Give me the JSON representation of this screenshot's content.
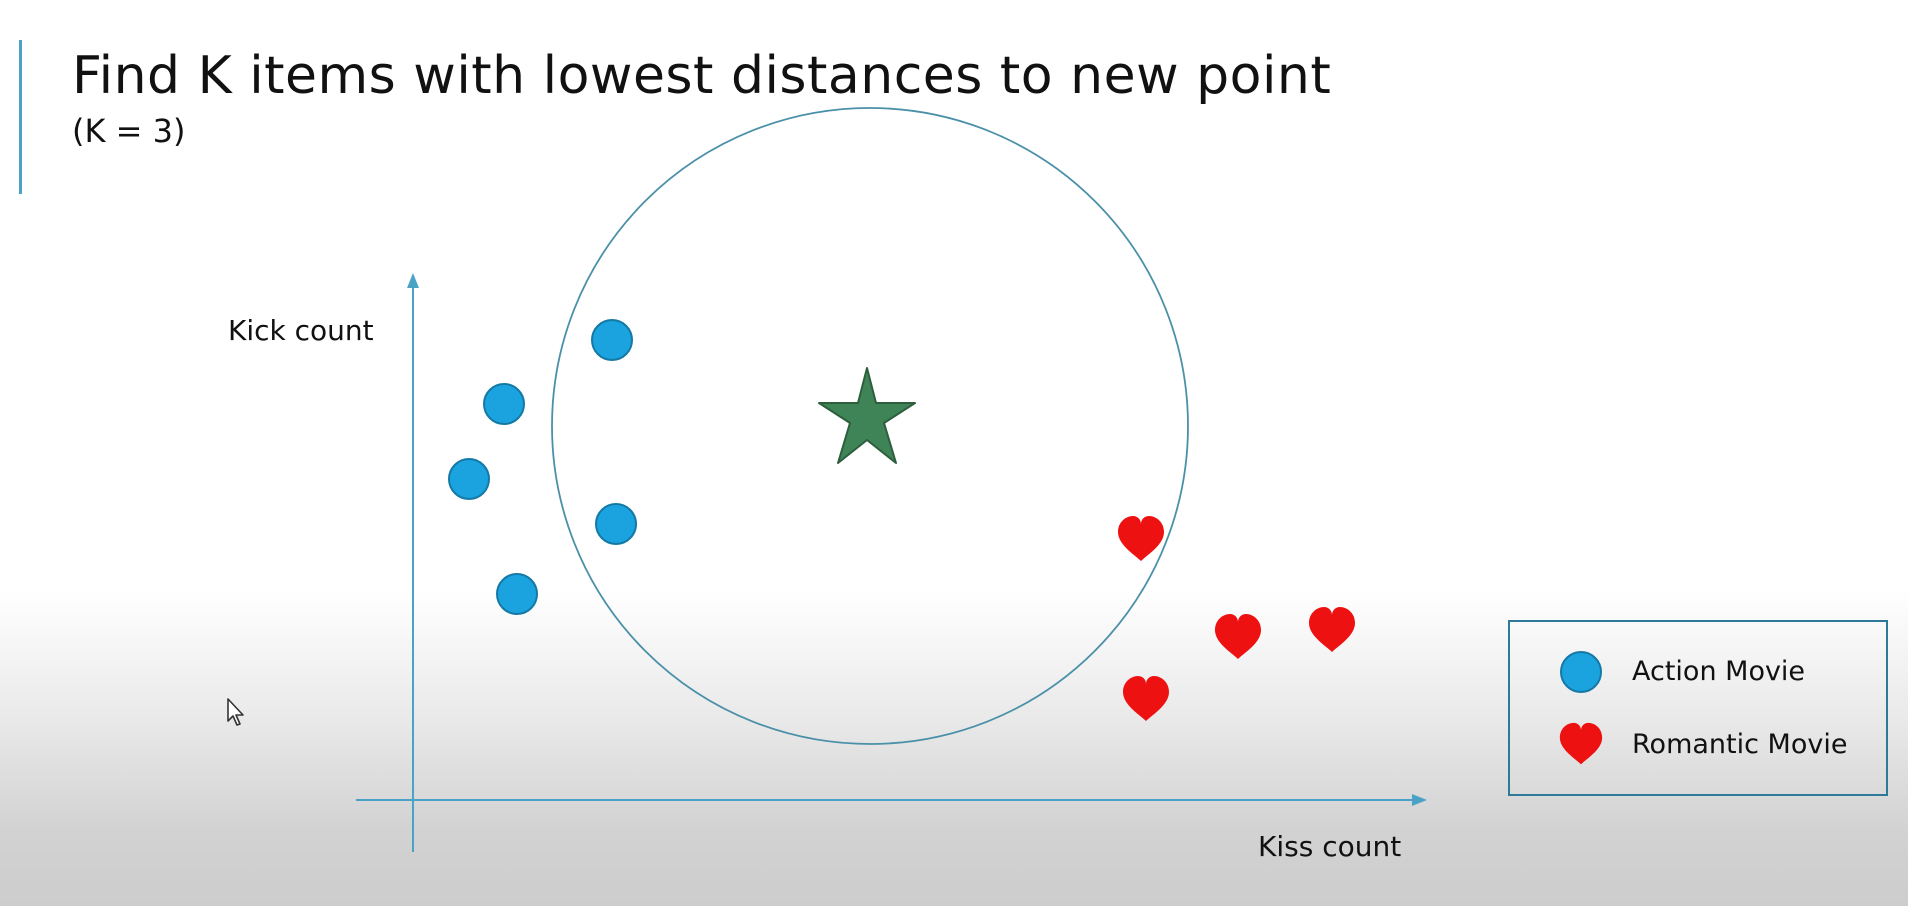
{
  "slide": {
    "title": "Find K items with lowest distances to new point",
    "subtitle": "(K = 3)"
  },
  "axes": {
    "y_label": "Kick count",
    "x_label": "Kiss count"
  },
  "legend": {
    "items": [
      {
        "label": "Action Movie",
        "icon": "blue-circle-icon"
      },
      {
        "label": "Romantic Movie",
        "icon": "red-heart-icon"
      }
    ]
  },
  "colors": {
    "accent": "#4aa3c7",
    "action": "#1aa3df",
    "romantic": "#ee1111",
    "new_point": "#3f8457",
    "circle_stroke": "#4a90a8"
  }
}
